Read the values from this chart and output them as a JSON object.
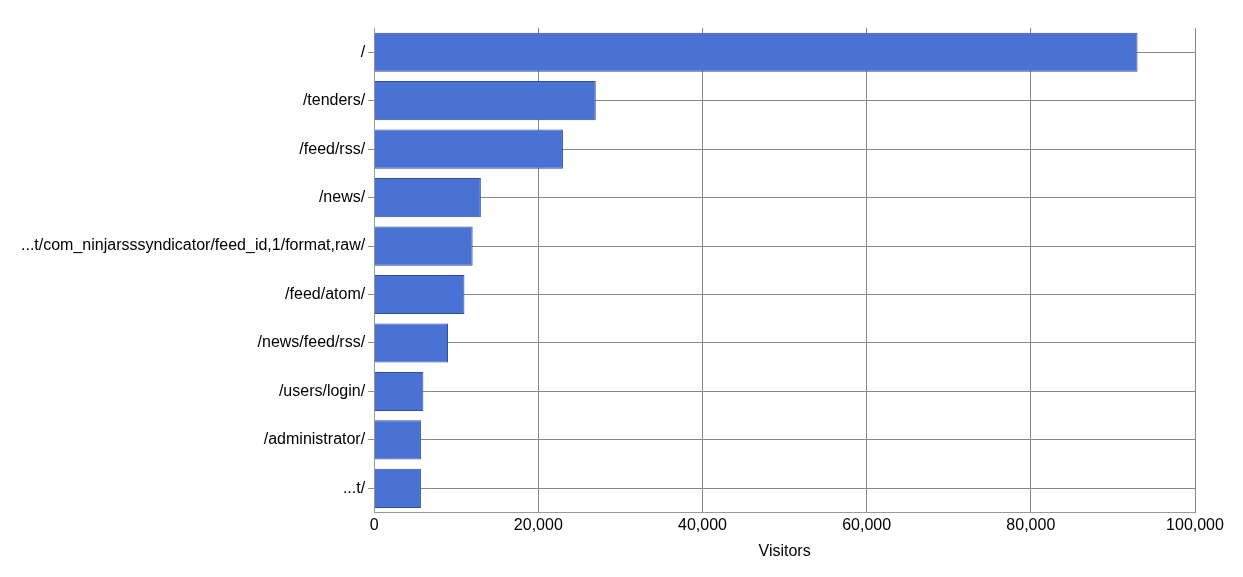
{
  "chart_data": {
    "type": "bar",
    "orientation": "horizontal",
    "xlabel": "Visitors",
    "categories": [
      "/",
      "/tenders/",
      "/feed/rss/",
      "/news/",
      "...t/com_ninjarsssyndicator/feed_id,1/format,raw/",
      "/feed/atom/",
      "/news/feed/rss/",
      "/users/login/",
      "/administrator/",
      "...t/"
    ],
    "values": [
      93000,
      27000,
      23000,
      13000,
      12000,
      11000,
      9000,
      6000,
      5700,
      5700
    ],
    "color": "#4a72d4",
    "xlim": [
      0,
      100000
    ],
    "xticks": [
      {
        "value": 0,
        "label": "0"
      },
      {
        "value": 20000,
        "label": "20,000"
      },
      {
        "value": 40000,
        "label": "40,000"
      },
      {
        "value": 60000,
        "label": "60,000"
      },
      {
        "value": 80000,
        "label": "80,000"
      },
      {
        "value": 100000,
        "label": "100,000"
      }
    ],
    "grid": true,
    "legend": false
  }
}
